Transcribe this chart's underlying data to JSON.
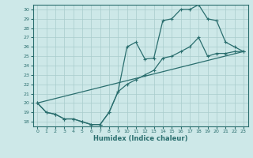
{
  "xlabel": "Humidex (Indice chaleur)",
  "xlim": [
    -0.5,
    23.5
  ],
  "ylim": [
    17.5,
    30.5
  ],
  "xticks": [
    0,
    1,
    2,
    3,
    4,
    5,
    6,
    7,
    8,
    9,
    10,
    11,
    12,
    13,
    14,
    15,
    16,
    17,
    18,
    19,
    20,
    21,
    22,
    23
  ],
  "yticks": [
    18,
    19,
    20,
    21,
    22,
    23,
    24,
    25,
    26,
    27,
    28,
    29,
    30
  ],
  "bg_color": "#cde8e8",
  "grid_color": "#a8cccc",
  "line_color": "#2a6e6e",
  "line1_x": [
    0,
    1,
    2,
    3,
    4,
    5,
    6,
    7,
    8,
    9,
    10,
    11,
    12,
    13,
    14,
    15,
    16,
    17,
    18,
    19,
    20,
    21,
    22,
    23
  ],
  "line1_y": [
    20,
    19,
    18.8,
    18.3,
    18.3,
    18,
    17.7,
    17.7,
    19,
    21.2,
    26,
    26.5,
    24.7,
    24.8,
    28.8,
    29,
    30,
    30,
    30.5,
    29,
    28.8,
    26.5,
    26,
    25.5
  ],
  "line2_x": [
    0,
    1,
    2,
    3,
    4,
    5,
    6,
    7,
    8,
    9,
    10,
    11,
    12,
    13,
    14,
    15,
    16,
    17,
    18,
    19,
    20,
    21,
    22,
    23
  ],
  "line2_y": [
    20,
    19,
    18.8,
    18.3,
    18.3,
    18,
    17.7,
    17.7,
    19,
    21.2,
    22,
    22.5,
    23,
    23.5,
    24.8,
    25,
    25.5,
    26,
    27,
    25,
    25.3,
    25.3,
    25.5,
    25.5
  ],
  "line3_x": [
    0,
    23
  ],
  "line3_y": [
    20,
    25.5
  ]
}
